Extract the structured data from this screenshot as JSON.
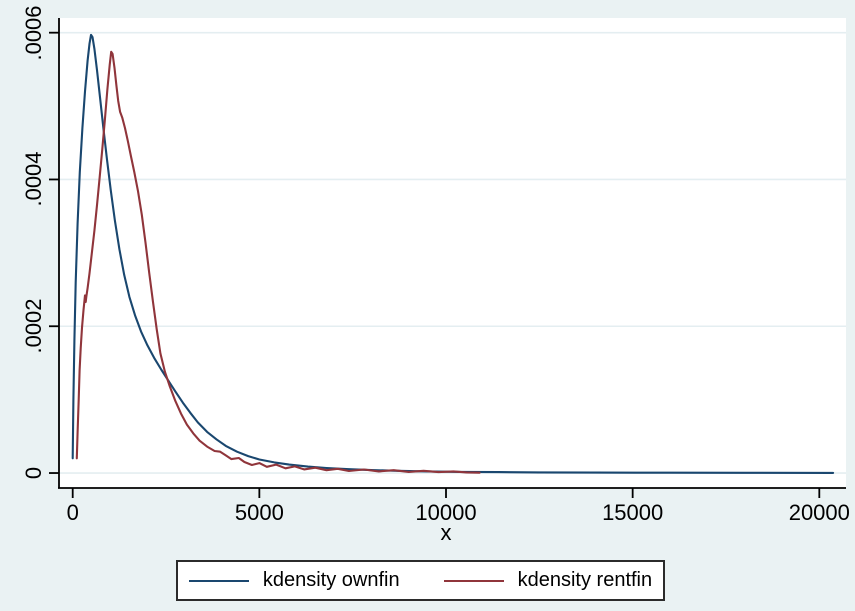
{
  "figure": {
    "background_color": "#eaf2f3",
    "plot_background_color": "#ffffff",
    "grid_color": "#e4eef1",
    "axis_color": "#000000"
  },
  "chart_data": {
    "type": "line",
    "title": "",
    "xlabel": "x",
    "ylabel": "",
    "grid": "horizontal",
    "legend_position": "bottom-center",
    "xlim": [
      -367,
      20715
    ],
    "ylim": [
      -2.04e-05,
      0.00062
    ],
    "x_ticks": [
      {
        "value": 0,
        "label": "0"
      },
      {
        "value": 5000,
        "label": "5000"
      },
      {
        "value": 10000,
        "label": "10000"
      },
      {
        "value": 15000,
        "label": "15000"
      },
      {
        "value": 20000,
        "label": "20000"
      }
    ],
    "y_ticks": [
      {
        "value": 0,
        "label": "0"
      },
      {
        "value": 0.0002,
        "label": ".0002"
      },
      {
        "value": 0.0004,
        "label": ".0004"
      },
      {
        "value": 0.0006,
        "label": ".0006"
      }
    ],
    "series": [
      {
        "name": "kdensity ownfin",
        "color": "#1a476f",
        "points": [
          [
            0,
            2e-05
          ],
          [
            20,
            0.0001
          ],
          [
            45,
            0.00018
          ],
          [
            80,
            0.00026
          ],
          [
            130,
            0.00034
          ],
          [
            190,
            0.00041
          ],
          [
            260,
            0.00047
          ],
          [
            330,
            0.00052
          ],
          [
            400,
            0.000562
          ],
          [
            450,
            0.000585
          ],
          [
            490,
            0.000597
          ],
          [
            530,
            0.000594
          ],
          [
            580,
            0.000578
          ],
          [
            650,
            0.000549
          ],
          [
            730,
            0.000512
          ],
          [
            820,
            0.000471
          ],
          [
            920,
            0.000427
          ],
          [
            1020,
            0.000385
          ],
          [
            1130,
            0.000344
          ],
          [
            1250,
            0.000305
          ],
          [
            1380,
            0.00027
          ],
          [
            1520,
            0.00024
          ],
          [
            1670,
            0.000215
          ],
          [
            1830,
            0.000193
          ],
          [
            2000,
            0.000174
          ],
          [
            2180,
            0.000157
          ],
          [
            2370,
            0.000141
          ],
          [
            2560,
            0.000126
          ],
          [
            2750,
            0.000111
          ],
          [
            2950,
            9.6e-05
          ],
          [
            3150,
            8.2e-05
          ],
          [
            3350,
            6.9e-05
          ],
          [
            3600,
            5.6e-05
          ],
          [
            3850,
            4.6e-05
          ],
          [
            4100,
            3.7e-05
          ],
          [
            4400,
            2.9e-05
          ],
          [
            4700,
            2.3e-05
          ],
          [
            5000,
            1.85e-05
          ],
          [
            5400,
            1.45e-05
          ],
          [
            5800,
            1.15e-05
          ],
          [
            6300,
            8.8e-06
          ],
          [
            6800,
            6.8e-06
          ],
          [
            7400,
            5.2e-06
          ],
          [
            8000,
            4e-06
          ],
          [
            8700,
            3e-06
          ],
          [
            9500,
            2.2e-06
          ],
          [
            10400,
            1.6e-06
          ],
          [
            11400,
            1.2e-06
          ],
          [
            12500,
            9e-07
          ],
          [
            14000,
            6e-07
          ],
          [
            16000,
            4e-07
          ],
          [
            18000,
            3e-07
          ],
          [
            20370,
            2e-07
          ]
        ]
      },
      {
        "name": "kdensity rentfin",
        "color": "#90353b",
        "points": [
          [
            110,
            2e-05
          ],
          [
            135,
            6e-05
          ],
          [
            160,
            0.0001
          ],
          [
            185,
            0.00014
          ],
          [
            215,
            0.00017
          ],
          [
            250,
            0.000198
          ],
          [
            290,
            0.000222
          ],
          [
            330,
            0.000242
          ],
          [
            348,
            0.000233
          ],
          [
            365,
            0.00024
          ],
          [
            400,
            0.000252
          ],
          [
            450,
            0.000272
          ],
          [
            510,
            0.000298
          ],
          [
            580,
            0.00033
          ],
          [
            650,
            0.000365
          ],
          [
            720,
            0.000402
          ],
          [
            790,
            0.00044
          ],
          [
            860,
            0.00048
          ],
          [
            930,
            0.000523
          ],
          [
            990,
            0.000556
          ],
          [
            1030,
            0.000574
          ],
          [
            1070,
            0.000571
          ],
          [
            1120,
            0.000552
          ],
          [
            1170,
            0.000528
          ],
          [
            1220,
            0.000507
          ],
          [
            1270,
            0.000492
          ],
          [
            1330,
            0.000484
          ],
          [
            1400,
            0.00047
          ],
          [
            1480,
            0.000452
          ],
          [
            1560,
            0.000432
          ],
          [
            1650,
            0.00041
          ],
          [
            1750,
            0.000384
          ],
          [
            1850,
            0.000352
          ],
          [
            1950,
            0.000314
          ],
          [
            2050,
            0.000273
          ],
          [
            2150,
            0.000233
          ],
          [
            2250,
            0.000196
          ],
          [
            2350,
            0.000163
          ],
          [
            2470,
            0.000138
          ],
          [
            2600,
            0.000118
          ],
          [
            2750,
            9.8e-05
          ],
          [
            2900,
            8.1e-05
          ],
          [
            3060,
            6.6e-05
          ],
          [
            3230,
            5.4e-05
          ],
          [
            3400,
            4.4e-05
          ],
          [
            3600,
            3.6e-05
          ],
          [
            3800,
            3e-05
          ],
          [
            3950,
            2.9e-05
          ],
          [
            4100,
            2.4e-05
          ],
          [
            4250,
            1.9e-05
          ],
          [
            4450,
            2.05e-05
          ],
          [
            4600,
            1.5e-05
          ],
          [
            4800,
            1.1e-05
          ],
          [
            5000,
            1.35e-05
          ],
          [
            5200,
            8.5e-06
          ],
          [
            5450,
            1.15e-05
          ],
          [
            5700,
            6.5e-06
          ],
          [
            5950,
            9e-06
          ],
          [
            6200,
            5e-06
          ],
          [
            6500,
            7.2e-06
          ],
          [
            6800,
            3.8e-06
          ],
          [
            7100,
            5.8e-06
          ],
          [
            7400,
            2.8e-06
          ],
          [
            7800,
            4.8e-06
          ],
          [
            8200,
            2.2e-06
          ],
          [
            8600,
            3.8e-06
          ],
          [
            9000,
            1.6e-06
          ],
          [
            9400,
            3e-06
          ],
          [
            9800,
            1.2e-06
          ],
          [
            10200,
            2.2e-06
          ],
          [
            10550,
            8e-07
          ],
          [
            10900,
            5e-07
          ]
        ]
      }
    ]
  },
  "legend": {
    "entries": [
      {
        "label": "kdensity ownfin",
        "color": "#1a476f"
      },
      {
        "label": "kdensity rentfin",
        "color": "#90353b"
      }
    ]
  }
}
